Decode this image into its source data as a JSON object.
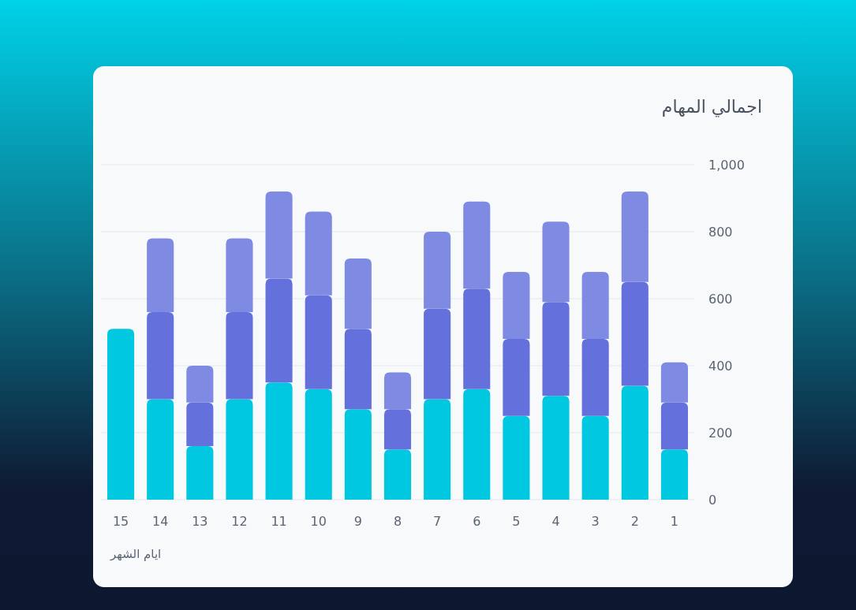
{
  "chart_data": {
    "type": "bar",
    "title": "اجمالي المهام",
    "xlabel": "ايام الشهر",
    "categories": [
      "15",
      "14",
      "13",
      "12",
      "11",
      "10",
      "9",
      "8",
      "7",
      "6",
      "5",
      "4",
      "3",
      "2",
      "1"
    ],
    "stacked": true,
    "series": [
      {
        "color": "#00c8e0",
        "values": [
          510,
          300,
          160,
          300,
          350,
          330,
          270,
          150,
          300,
          330,
          250,
          310,
          250,
          340,
          150
        ]
      },
      {
        "color": "#6470dc",
        "values": [
          null,
          260,
          130,
          260,
          310,
          280,
          240,
          120,
          270,
          300,
          230,
          280,
          230,
          310,
          140
        ]
      },
      {
        "color": "#7f8ae3",
        "values": [
          null,
          220,
          110,
          220,
          260,
          250,
          210,
          110,
          230,
          260,
          200,
          240,
          200,
          270,
          120
        ]
      }
    ],
    "ylim": [
      0,
      1000
    ],
    "yticks": [
      0,
      200,
      400,
      600,
      800,
      {
        "value": 1000,
        "label": "1,000"
      }
    ],
    "grid": "y"
  }
}
